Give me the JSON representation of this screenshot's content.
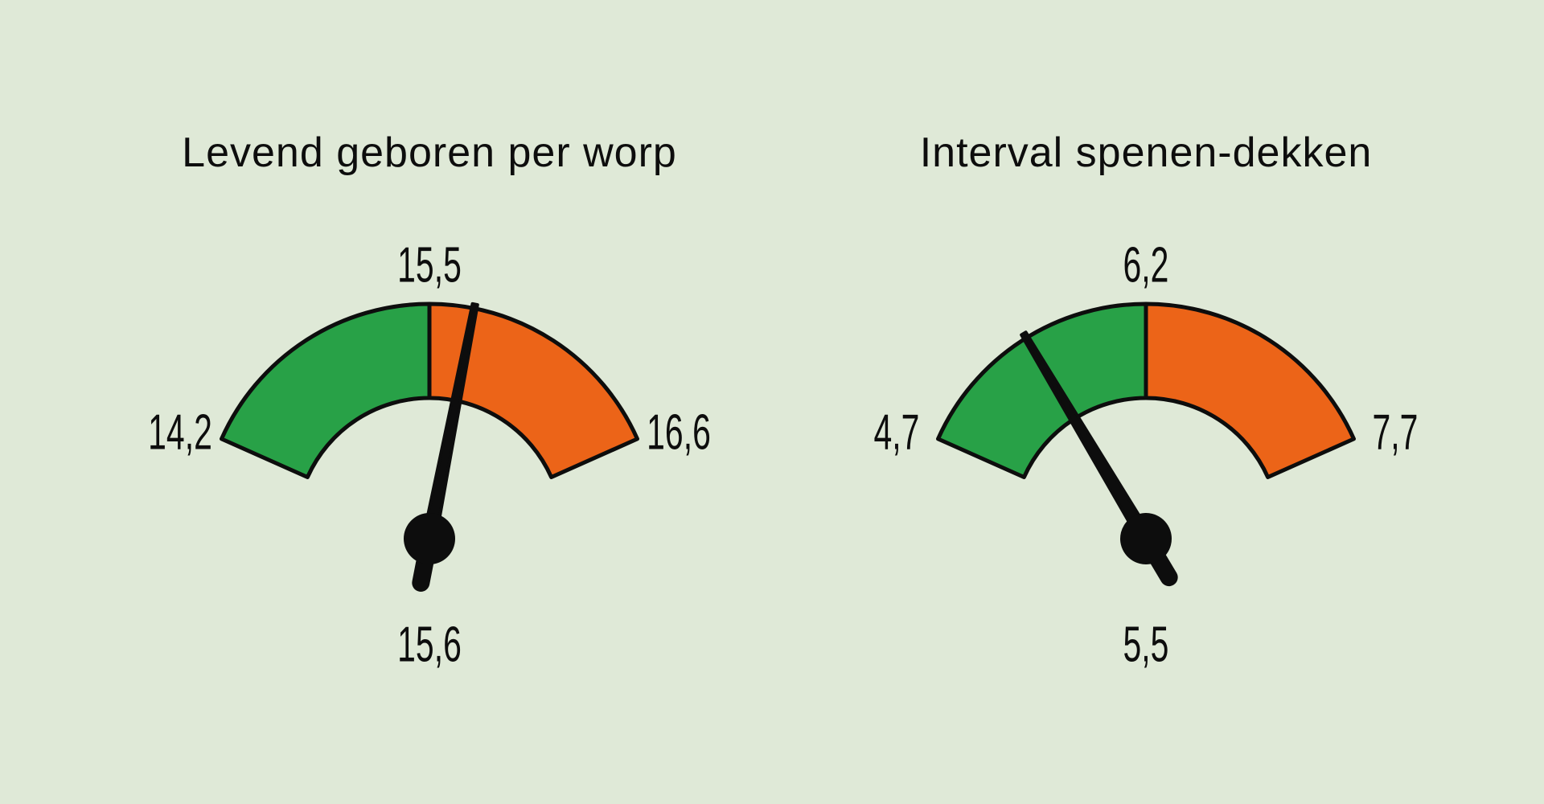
{
  "background_color": "#dfe9d7",
  "ink_color": "#0d0d0d",
  "gauges": [
    {
      "title": "Levend geboren per worp",
      "min_label": "14,2",
      "threshold_label": "15,5",
      "max_label": "16,6",
      "value_label": "15,6",
      "green_color": "#28a147",
      "orange_color": "#ec6418"
    },
    {
      "title": "Interval spenen-dekken",
      "min_label": "4,7",
      "threshold_label": "6,2",
      "max_label": "7,7",
      "value_label": "5,5",
      "green_color": "#28a147",
      "orange_color": "#ec6418"
    }
  ],
  "chart_data": [
    {
      "type": "gauge",
      "title": "Levend geboren per worp",
      "min": 14.2,
      "max": 16.6,
      "threshold": 15.5,
      "value": 15.6,
      "arc_span_degrees": 132,
      "segments": [
        {
          "from": 14.2,
          "to": 15.5,
          "color": "#28a147",
          "name": "green-below-threshold"
        },
        {
          "from": 15.5,
          "to": 16.6,
          "color": "#ec6418",
          "name": "orange-above-threshold"
        }
      ],
      "labels": {
        "left": "14,2",
        "top": "15,5",
        "right": "16,6",
        "bottom_value": "15,6"
      }
    },
    {
      "type": "gauge",
      "title": "Interval spenen-dekken",
      "min": 4.7,
      "max": 7.7,
      "threshold": 6.2,
      "value": 5.5,
      "arc_span_degrees": 132,
      "segments": [
        {
          "from": 4.7,
          "to": 6.2,
          "color": "#28a147",
          "name": "green-below-threshold"
        },
        {
          "from": 6.2,
          "to": 7.7,
          "color": "#ec6418",
          "name": "orange-above-threshold"
        }
      ],
      "labels": {
        "left": "4,7",
        "top": "6,2",
        "right": "7,7",
        "bottom_value": "5,5"
      }
    }
  ]
}
